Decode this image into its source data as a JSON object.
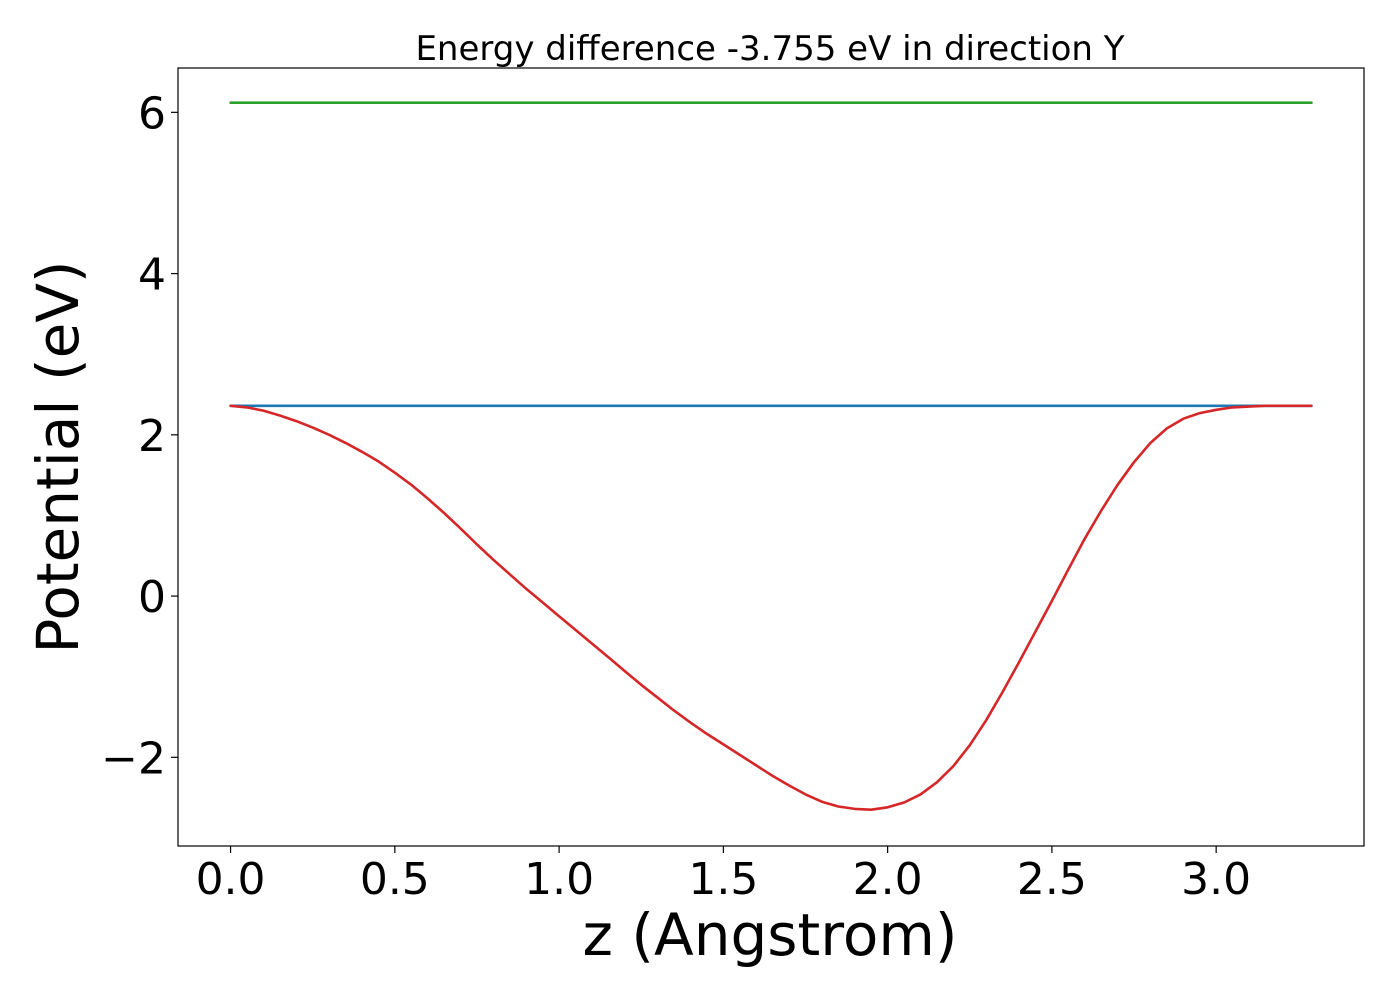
{
  "chart_data": {
    "type": "line",
    "title": "Energy difference -3.755 eV in direction Y",
    "xlabel": "z (Angstrom)",
    "ylabel": "Potential (eV)",
    "xlim": [
      -0.16,
      3.45
    ],
    "ylim": [
      -3.1,
      6.55
    ],
    "x_ticks": [
      0.0,
      0.5,
      1.0,
      1.5,
      2.0,
      2.5,
      3.0
    ],
    "x_tick_labels": [
      "0.0",
      "0.5",
      "1.0",
      "1.5",
      "2.0",
      "2.5",
      "3.0"
    ],
    "y_ticks": [
      -2,
      0,
      2,
      4,
      6
    ],
    "y_tick_labels": [
      "−2",
      "0",
      "2",
      "4",
      "6"
    ],
    "grid": false,
    "legend": "none",
    "series": [
      {
        "color": "#2ca02c",
        "x": [
          0.0,
          3.29
        ],
        "values": [
          6.12,
          6.12
        ]
      },
      {
        "color": "#1f77b4",
        "x": [
          0.0,
          3.29
        ],
        "values": [
          2.36,
          2.36
        ]
      },
      {
        "color": "#d62728",
        "x": [
          0.0,
          0.05,
          0.1,
          0.15,
          0.2,
          0.25,
          0.3,
          0.35,
          0.4,
          0.45,
          0.5,
          0.55,
          0.6,
          0.65,
          0.7,
          0.75,
          0.8,
          0.85,
          0.9,
          0.95,
          1.0,
          1.05,
          1.1,
          1.15,
          1.2,
          1.25,
          1.3,
          1.35,
          1.4,
          1.45,
          1.5,
          1.55,
          1.6,
          1.65,
          1.7,
          1.75,
          1.8,
          1.85,
          1.9,
          1.95,
          2.0,
          2.05,
          2.1,
          2.15,
          2.2,
          2.25,
          2.3,
          2.35,
          2.4,
          2.45,
          2.5,
          2.55,
          2.6,
          2.65,
          2.7,
          2.75,
          2.8,
          2.85,
          2.9,
          2.95,
          3.0,
          3.05,
          3.1,
          3.15,
          3.2,
          3.25,
          3.29
        ],
        "values": [
          2.36,
          2.34,
          2.3,
          2.24,
          2.17,
          2.09,
          2.0,
          1.9,
          1.79,
          1.67,
          1.53,
          1.38,
          1.21,
          1.03,
          0.84,
          0.64,
          0.45,
          0.27,
          0.09,
          -0.08,
          -0.25,
          -0.42,
          -0.59,
          -0.76,
          -0.93,
          -1.1,
          -1.26,
          -1.42,
          -1.57,
          -1.71,
          -1.84,
          -1.97,
          -2.1,
          -2.23,
          -2.35,
          -2.46,
          -2.55,
          -2.61,
          -2.64,
          -2.65,
          -2.62,
          -2.56,
          -2.46,
          -2.31,
          -2.11,
          -1.85,
          -1.54,
          -1.19,
          -0.82,
          -0.44,
          -0.06,
          0.33,
          0.71,
          1.06,
          1.38,
          1.66,
          1.9,
          2.08,
          2.2,
          2.27,
          2.31,
          2.34,
          2.35,
          2.36,
          2.36,
          2.36,
          2.36
        ]
      }
    ]
  }
}
